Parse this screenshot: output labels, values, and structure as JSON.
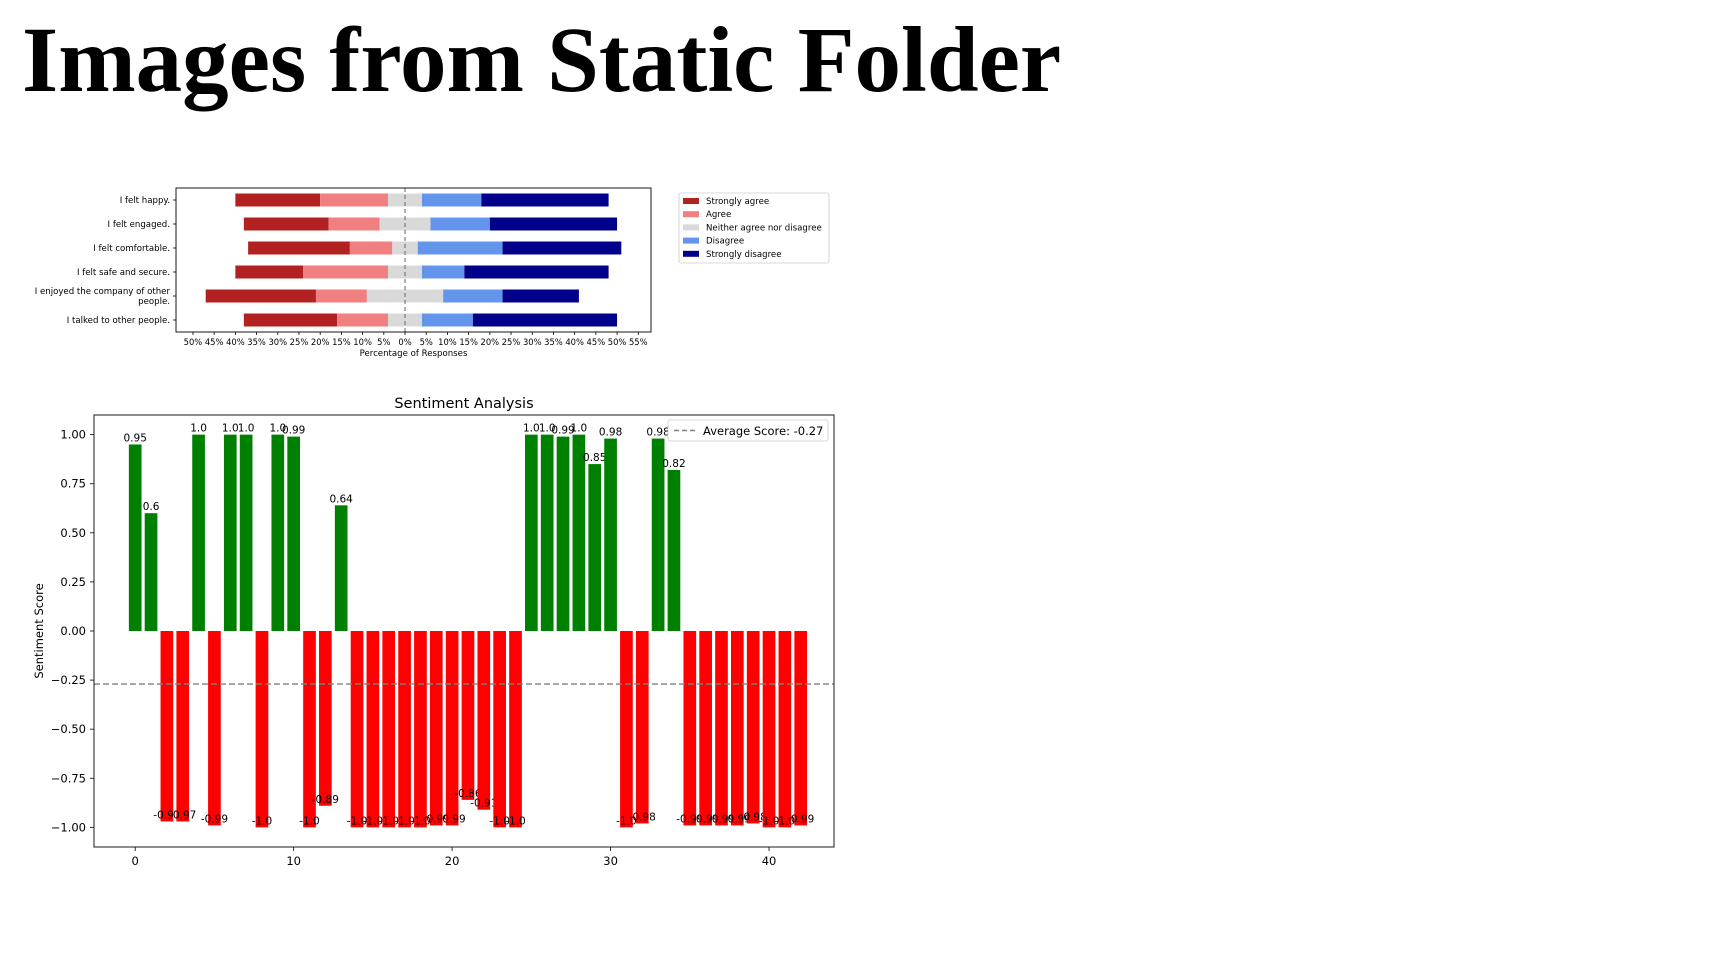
{
  "page": {
    "title": "Images from Static Folder"
  },
  "chart_data": [
    {
      "type": "bar",
      "orientation": "horizontal-diverging-stacked",
      "title": "",
      "xlabel": "Percentage of Responses",
      "ylabel": "",
      "xlim": [
        -54,
        58
      ],
      "x_ticks": [
        {
          "v": -50,
          "label": "50%"
        },
        {
          "v": -45,
          "label": "45%"
        },
        {
          "v": -40,
          "label": "40%"
        },
        {
          "v": -35,
          "label": "35%"
        },
        {
          "v": -30,
          "label": "30%"
        },
        {
          "v": -25,
          "label": "25%"
        },
        {
          "v": -20,
          "label": "20%"
        },
        {
          "v": -15,
          "label": "15%"
        },
        {
          "v": -10,
          "label": "10%"
        },
        {
          "v": -5,
          "label": "5%"
        },
        {
          "v": 0,
          "label": "0%"
        },
        {
          "v": 5,
          "label": "5%"
        },
        {
          "v": 10,
          "label": "10%"
        },
        {
          "v": 15,
          "label": "15%"
        },
        {
          "v": 20,
          "label": "20%"
        },
        {
          "v": 25,
          "label": "25%"
        },
        {
          "v": 30,
          "label": "30%"
        },
        {
          "v": 35,
          "label": "35%"
        },
        {
          "v": 40,
          "label": "40%"
        },
        {
          "v": 45,
          "label": "45%"
        },
        {
          "v": 50,
          "label": "50%"
        },
        {
          "v": 55,
          "label": "55%"
        }
      ],
      "categories": [
        [
          "I felt happy."
        ],
        [
          "I felt engaged."
        ],
        [
          "I felt comfortable."
        ],
        [
          "I felt safe and secure."
        ],
        [
          "I enjoyed the company of other",
          "people."
        ],
        [
          "I talked to other people."
        ]
      ],
      "series": [
        {
          "name": "Strongly agree",
          "color": "#b22222",
          "values": [
            20,
            20,
            24,
            16,
            26,
            22
          ]
        },
        {
          "name": "Agree",
          "color": "#f08080",
          "values": [
            16,
            12,
            10,
            20,
            12,
            12
          ]
        },
        {
          "name": "Neither agree nor disagree",
          "color": "#d9d9d9",
          "values": [
            8,
            12,
            6,
            8,
            18,
            8
          ]
        },
        {
          "name": "Disagree",
          "color": "#6495ed",
          "values": [
            14,
            14,
            20,
            10,
            14,
            12
          ]
        },
        {
          "name": "Strongly disagree",
          "color": "#00008b",
          "values": [
            30,
            30,
            28,
            34,
            18,
            34
          ]
        }
      ],
      "center_line": 0,
      "legend_position": "right",
      "grid": false
    },
    {
      "type": "bar",
      "title": "Sentiment Analysis",
      "xlabel": "",
      "ylabel": "Sentiment Score",
      "xlim": [
        -2.6,
        44.1
      ],
      "ylim": [
        -1.1,
        1.1
      ],
      "x_ticks": [
        0,
        10,
        20,
        30,
        40
      ],
      "y_ticks": [
        {
          "v": 1.0,
          "label": "1.00"
        },
        {
          "v": 0.75,
          "label": "0.75"
        },
        {
          "v": 0.5,
          "label": "0.50"
        },
        {
          "v": 0.25,
          "label": "0.25"
        },
        {
          "v": 0.0,
          "label": "0.00"
        },
        {
          "v": -0.25,
          "label": "−0.25"
        },
        {
          "v": -0.5,
          "label": "−0.50"
        },
        {
          "v": -0.75,
          "label": "−0.75"
        },
        {
          "v": -1.0,
          "label": "−1.00"
        }
      ],
      "x": [
        0,
        1,
        2,
        3,
        4,
        5,
        6,
        7,
        8,
        9,
        10,
        11,
        12,
        13,
        14,
        15,
        16,
        17,
        18,
        19,
        20,
        21,
        22,
        23,
        24,
        25,
        26,
        27,
        28,
        29,
        30,
        31,
        32,
        33,
        34,
        35,
        36,
        37,
        38,
        39,
        40,
        41,
        42
      ],
      "values": [
        0.95,
        0.6,
        -0.97,
        -0.97,
        1.0,
        -0.99,
        1.0,
        1.0,
        -1.0,
        1.0,
        0.99,
        -1.0,
        -0.89,
        0.64,
        -1.0,
        -1.0,
        -1.0,
        -1.0,
        -1.0,
        -0.99,
        -0.99,
        -0.86,
        -0.91,
        -1.0,
        -1.0,
        1.0,
        1.0,
        0.99,
        1.0,
        0.85,
        0.98,
        -1.0,
        -0.98,
        0.98,
        0.82,
        -0.99,
        -0.99,
        -0.99,
        -0.99,
        -0.98,
        -1.0,
        -1.0,
        -0.99
      ],
      "bar_labels": [
        "0.95",
        "0.6",
        "-0.97",
        "-0.97",
        "1.0",
        "-0.99",
        "1.0",
        "1.0",
        "-1.0",
        "1.0",
        "0.99",
        "-1.0",
        "-0.89",
        "0.64",
        "-1.0",
        "-1.0",
        "-1.0",
        "-1.0",
        "-1.0",
        "-0.99",
        "-0.99",
        "-0.86",
        "-0.91",
        "-1.0",
        "-1.0",
        "1.0",
        "1.0",
        "0.99",
        "1.0",
        "0.85",
        "0.98",
        "-1.0",
        "-0.98",
        "0.98",
        "0.82",
        "-0.99",
        "-0.99",
        "-0.99",
        "-0.99",
        "-0.98",
        "-1.0",
        "-1.0",
        "-0.99"
      ],
      "positive_color": "#008000",
      "negative_color": "#ff0000",
      "average": {
        "value": -0.27,
        "label": "Average Score: -0.27",
        "color": "#808080"
      },
      "legend_position": "top-right",
      "grid": false
    }
  ]
}
